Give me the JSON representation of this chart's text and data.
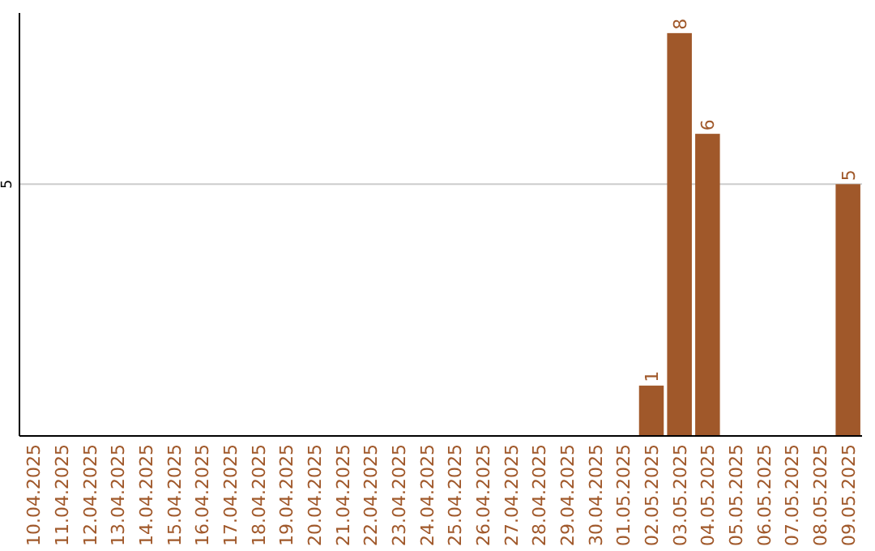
{
  "chart_data": {
    "type": "bar",
    "categories": [
      "10.04.2025",
      "11.04.2025",
      "12.04.2025",
      "13.04.2025",
      "14.04.2025",
      "15.04.2025",
      "16.04.2025",
      "17.04.2025",
      "18.04.2025",
      "19.04.2025",
      "20.04.2025",
      "21.04.2025",
      "22.04.2025",
      "23.04.2025",
      "24.04.2025",
      "25.04.2025",
      "26.04.2025",
      "27.04.2025",
      "28.04.2025",
      "29.04.2025",
      "30.04.2025",
      "01.05.2025",
      "02.05.2025",
      "03.05.2025",
      "04.05.2025",
      "05.05.2025",
      "06.05.2025",
      "07.05.2025",
      "08.05.2025",
      "09.05.2025"
    ],
    "values": [
      null,
      null,
      null,
      null,
      null,
      null,
      null,
      null,
      null,
      null,
      null,
      null,
      null,
      null,
      null,
      null,
      null,
      null,
      null,
      null,
      null,
      null,
      1,
      8,
      6,
      null,
      null,
      null,
      null,
      5
    ],
    "data_labels": true,
    "color": "#a0582a",
    "ylim": [
      0,
      8.4
    ],
    "yticks": [
      5
    ],
    "grid": "y"
  }
}
